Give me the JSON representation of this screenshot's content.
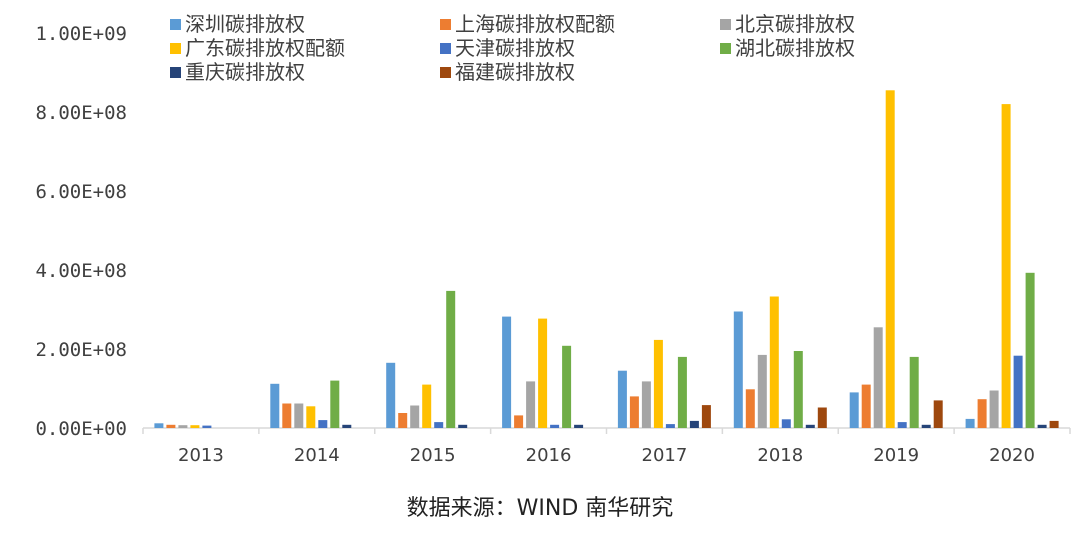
{
  "chart_data": {
    "type": "bar",
    "categories": [
      "2013",
      "2014",
      "2015",
      "2016",
      "2017",
      "2018",
      "2019",
      "2020"
    ],
    "ylim": [
      0,
      1000000000
    ],
    "yticks": [
      {
        "value": 0,
        "label": "0.00E+00"
      },
      {
        "value": 200000000,
        "label": "2.00E+08"
      },
      {
        "value": 400000000,
        "label": "4.00E+08"
      },
      {
        "value": 600000000,
        "label": "6.00E+08"
      },
      {
        "value": 800000000,
        "label": "8.00E+08"
      },
      {
        "value": 1000000000,
        "label": "1.00E+09"
      }
    ],
    "legend_position": "top",
    "grid": false,
    "series": [
      {
        "name": "深圳碳排放权",
        "color": "#5B9BD5",
        "values": [
          12000000,
          112000000,
          165000000,
          282000000,
          145000000,
          295000000,
          90000000,
          23000000
        ]
      },
      {
        "name": "上海碳排放权配额",
        "color": "#ED7D31",
        "values": [
          8000000,
          62000000,
          38000000,
          32000000,
          80000000,
          98000000,
          110000000,
          73000000
        ]
      },
      {
        "name": "北京碳排放权",
        "color": "#A5A5A5",
        "values": [
          7000000,
          62000000,
          57000000,
          118000000,
          118000000,
          185000000,
          255000000,
          95000000
        ]
      },
      {
        "name": "广东碳排放权配额",
        "color": "#FFC000",
        "values": [
          7000000,
          55000000,
          110000000,
          277000000,
          223000000,
          333000000,
          855000000,
          820000000
        ]
      },
      {
        "name": "天津碳排放权",
        "color": "#4472C4",
        "values": [
          6000000,
          20000000,
          15000000,
          8000000,
          10000000,
          22000000,
          15000000,
          183000000
        ]
      },
      {
        "name": "湖北碳排放权",
        "color": "#70AD47",
        "values": [
          0,
          120000000,
          347000000,
          208000000,
          180000000,
          195000000,
          180000000,
          393000000
        ]
      },
      {
        "name": "重庆碳排放权",
        "color": "#264478",
        "values": [
          0,
          8000000,
          8000000,
          8000000,
          18000000,
          8000000,
          8000000,
          8000000
        ]
      },
      {
        "name": "福建碳排放权",
        "color": "#9E480E",
        "values": [
          0,
          0,
          0,
          0,
          58000000,
          52000000,
          70000000,
          18000000
        ]
      }
    ]
  },
  "source": "数据来源：WIND 南华研究"
}
